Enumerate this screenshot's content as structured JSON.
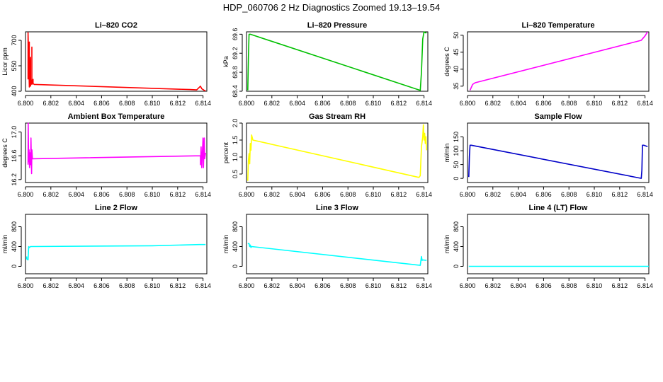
{
  "title": "HDP_060706  2 Hz Diagnostics Zoomed 19.13–19.54",
  "colors": {
    "red": "#ff0000",
    "green": "#00c000",
    "magenta": "#ff00ff",
    "yellow": "#ffff00",
    "blue": "#0000c8",
    "cyan": "#00ffff"
  },
  "chart_data": [
    {
      "type": "line",
      "title": "Li–820 CO2",
      "ylabel": "Licor ppm",
      "color": "#ff0000",
      "xlim": [
        6.8,
        6.8143
      ],
      "xticks": [
        "6.800",
        "6.802",
        "6.804",
        "6.806",
        "6.808",
        "6.810",
        "6.812",
        "6.814"
      ],
      "ylim": [
        400,
        750
      ],
      "yticks": [
        "400",
        "550",
        "700"
      ],
      "ytick_values": [
        400,
        550,
        700
      ],
      "x": [
        6.8002,
        6.8002,
        6.8003,
        6.8003,
        6.8003,
        6.8004,
        6.8004,
        6.8004,
        6.8005,
        6.8005,
        6.8005,
        6.8006,
        6.8006,
        6.8006,
        6.8007,
        6.8008,
        6.813,
        6.8135,
        6.8138,
        6.8139,
        6.814,
        6.8141,
        6.8142
      ],
      "y": [
        470,
        745,
        430,
        690,
        425,
        600,
        430,
        470,
        440,
        660,
        445,
        470,
        450,
        445,
        440,
        440,
        410,
        408,
        430,
        415,
        410,
        405,
        403
      ]
    },
    {
      "type": "line",
      "title": "Li–820 Pressure",
      "ylabel": "kPa",
      "color": "#00c000",
      "xlim": [
        6.8,
        6.8143
      ],
      "xticks": [
        "6.800",
        "6.802",
        "6.804",
        "6.806",
        "6.808",
        "6.810",
        "6.812",
        "6.814"
      ],
      "ylim": [
        68.4,
        69.65
      ],
      "yticks": [
        "68.4",
        "68.8",
        "69.2",
        "69.6"
      ],
      "ytick_values": [
        68.4,
        68.8,
        69.2,
        69.6
      ],
      "x": [
        6.8001,
        6.80015,
        6.8002,
        6.8003,
        6.8137,
        6.8138,
        6.8139,
        6.814,
        6.8141,
        6.8142
      ],
      "y": [
        68.42,
        69.1,
        69.6,
        69.6,
        68.42,
        68.8,
        69.5,
        69.65,
        69.63,
        69.63
      ]
    },
    {
      "type": "line",
      "title": "Li–820 Temperature",
      "ylabel": "degrees C",
      "color": "#ff00ff",
      "xlim": [
        6.8,
        6.8143
      ],
      "xticks": [
        "6.800",
        "6.802",
        "6.804",
        "6.806",
        "6.808",
        "6.810",
        "6.812",
        "6.814"
      ],
      "ylim": [
        33.5,
        51
      ],
      "yticks": [
        "35",
        "40",
        "45",
        "50"
      ],
      "ytick_values": [
        35,
        40,
        45,
        50
      ],
      "x": [
        6.8002,
        6.8004,
        6.8006,
        6.8137,
        6.814,
        6.8142
      ],
      "y": [
        33.8,
        35.5,
        36.0,
        48.5,
        49.8,
        51
      ]
    },
    {
      "type": "line",
      "title": "Ambient Box Temperature",
      "ylabel": "degrees C",
      "color": "#ff00ff",
      "xlim": [
        6.8,
        6.8143
      ],
      "xticks": [
        "6.800",
        "6.802",
        "6.804",
        "6.806",
        "6.808",
        "6.810",
        "6.812",
        "6.814"
      ],
      "ylim": [
        16.15,
        17.15
      ],
      "yticks": [
        "16.2",
        "16.6",
        "17.0"
      ],
      "ytick_values": [
        16.2,
        16.6,
        17.0
      ],
      "x": [
        6.8002,
        6.80021,
        6.80025,
        6.80028,
        6.80032,
        6.80035,
        6.8004,
        6.80043,
        6.80048,
        6.8005,
        6.80055,
        6.8006,
        6.8138,
        6.8138,
        6.81385,
        6.8139,
        6.81395,
        6.814,
        6.81403,
        6.8141,
        6.81413,
        6.8142
      ],
      "y": [
        16.45,
        17.15,
        16.5,
        16.7,
        16.4,
        16.65,
        16.45,
        16.9,
        16.3,
        16.7,
        16.55,
        16.55,
        16.6,
        16.45,
        16.75,
        16.4,
        16.65,
        16.9,
        16.4,
        16.9,
        16.55,
        16.65
      ]
    },
    {
      "type": "line",
      "title": "Gas Stream RH",
      "ylabel": "percent",
      "color": "#ffff00",
      "xlim": [
        6.8,
        6.8143
      ],
      "xticks": [
        "6.800",
        "6.802",
        "6.804",
        "6.806",
        "6.808",
        "6.810",
        "6.812",
        "6.814"
      ],
      "ylim": [
        0.25,
        2.0
      ],
      "yticks": [
        "0.5",
        "1.0",
        "1.5",
        "2.0"
      ],
      "ytick_values": [
        0.5,
        1.0,
        1.5,
        2.0
      ],
      "x": [
        6.8001,
        6.80015,
        6.8002,
        6.80025,
        6.8003,
        6.80035,
        6.8004,
        6.8005,
        6.8136,
        6.8137,
        6.8138,
        6.8139,
        6.81395,
        6.814,
        6.81405,
        6.8141,
        6.81415,
        6.8142
      ],
      "y": [
        0.3,
        0.9,
        1.1,
        0.8,
        1.4,
        1.2,
        1.65,
        1.5,
        0.4,
        0.45,
        1.3,
        1.6,
        1.95,
        1.5,
        1.7,
        1.4,
        1.6,
        1.2
      ]
    },
    {
      "type": "line",
      "title": "Sample Flow",
      "ylabel": "ml/min",
      "color": "#0000c8",
      "xlim": [
        6.8,
        6.8143
      ],
      "xticks": [
        "6.800",
        "6.802",
        "6.804",
        "6.806",
        "6.808",
        "6.810",
        "6.812",
        "6.814"
      ],
      "ylim": [
        -15,
        200
      ],
      "yticks": [
        "0",
        "50",
        "100",
        "150"
      ],
      "ytick_values": [
        0,
        50,
        100,
        150
      ],
      "x": [
        6.8001,
        6.80015,
        6.8002,
        6.8003,
        6.8137,
        6.81375,
        6.8138,
        6.8139,
        6.8142
      ],
      "y": [
        5,
        80,
        120,
        120,
        0,
        30,
        120,
        120,
        115
      ]
    },
    {
      "type": "line",
      "title": "Line 2 Flow",
      "ylabel": "ml/min",
      "color": "#00ffff",
      "xlim": [
        6.8,
        6.8143
      ],
      "xticks": [
        "6.800",
        "6.802",
        "6.804",
        "6.806",
        "6.808",
        "6.810",
        "6.812",
        "6.814"
      ],
      "ylim": [
        -150,
        1050
      ],
      "yticks": [
        "0",
        "400",
        "800"
      ],
      "ytick_values": [
        0,
        400,
        800
      ],
      "x": [
        6.8001,
        6.8001,
        6.8002,
        6.80025,
        6.8003,
        6.8004,
        6.81,
        6.8137,
        6.8142
      ],
      "y": [
        200,
        150,
        130,
        400,
        380,
        400,
        415,
        440,
        440
      ]
    },
    {
      "type": "line",
      "title": "Line 3 Flow",
      "ylabel": "ml/min",
      "color": "#00ffff",
      "xlim": [
        6.8,
        6.8143
      ],
      "xticks": [
        "6.800",
        "6.802",
        "6.804",
        "6.806",
        "6.808",
        "6.810",
        "6.812",
        "6.814"
      ],
      "ylim": [
        -150,
        1050
      ],
      "yticks": [
        "0",
        "400",
        "800"
      ],
      "ytick_values": [
        0,
        400,
        800
      ],
      "x": [
        6.8001,
        6.8002,
        6.80025,
        6.8003,
        6.80035,
        6.8004,
        6.8137,
        6.8138,
        6.81385,
        6.8139,
        6.8142
      ],
      "y": [
        460,
        460,
        400,
        430,
        380,
        400,
        20,
        200,
        120,
        130,
        120
      ]
    },
    {
      "type": "line",
      "title": "Line 4 (LT) Flow",
      "ylabel": "ml/min",
      "color": "#00ffff",
      "xlim": [
        6.8,
        6.8143
      ],
      "xticks": [
        "6.800",
        "6.802",
        "6.804",
        "6.806",
        "6.808",
        "6.810",
        "6.812",
        "6.814"
      ],
      "ylim": [
        -150,
        1050
      ],
      "yticks": [
        "0",
        "400",
        "800"
      ],
      "ytick_values": [
        0,
        400,
        800
      ],
      "x": [
        6.8001,
        6.8143
      ],
      "y": [
        0,
        0
      ]
    }
  ]
}
